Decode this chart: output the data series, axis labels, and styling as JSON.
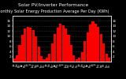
{
  "title": "Solar PV/Inverter Performance",
  "subtitle": "Monthly Solar Energy Production Average Per Day (KWh)",
  "bar_color": "#ff0000",
  "background_color": "#000000",
  "plot_bg_color": "#000000",
  "grid_color": "#555555",
  "text_color": "#ffffff",
  "values": [
    1.2,
    2.5,
    6.5,
    10.5,
    13.0,
    13.8,
    13.2,
    12.5,
    9.8,
    5.8,
    2.2,
    0.8,
    1.4,
    3.2,
    7.2,
    11.0,
    13.5,
    15.0,
    14.2,
    13.0,
    10.5,
    6.5,
    2.6,
    1.0,
    1.6,
    3.8,
    8.0,
    11.5,
    14.5,
    15.8,
    14.8,
    13.8,
    11.0,
    7.2,
    3.2,
    1.4
  ],
  "ylim": [
    0,
    18
  ],
  "yticks": [
    2,
    4,
    6,
    8,
    10,
    12,
    14,
    16
  ],
  "tick_fontsize": 3.0,
  "title_fontsize": 4.2,
  "subtitle_fontsize": 3.6
}
